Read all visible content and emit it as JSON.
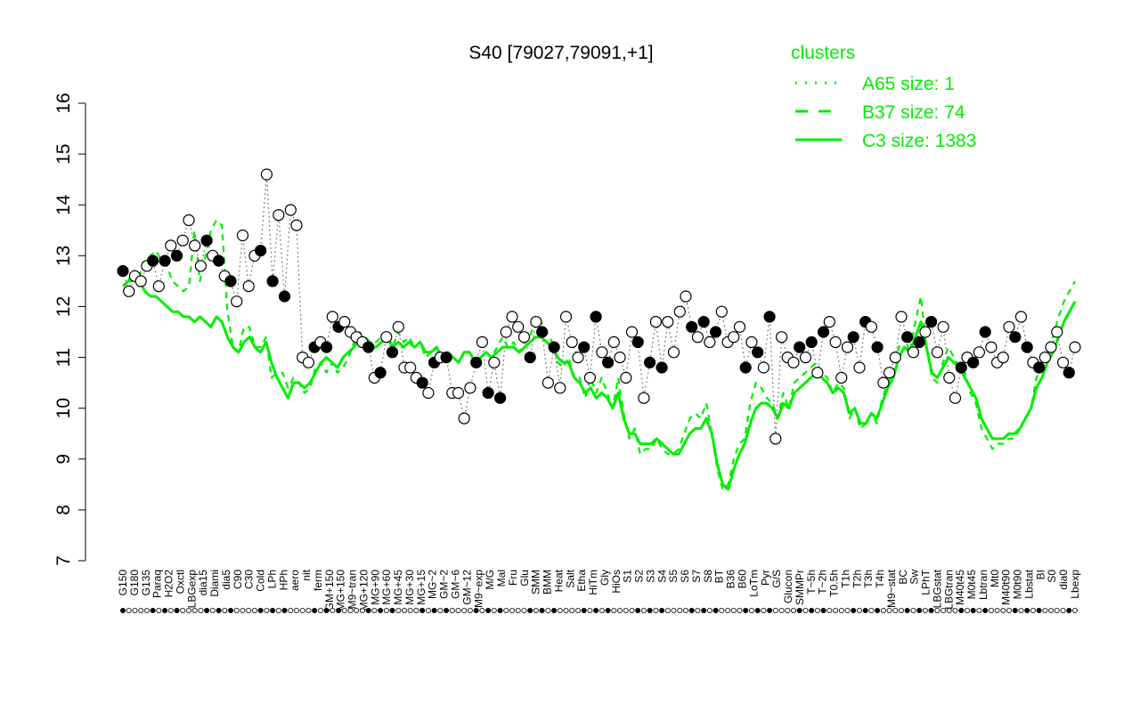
{
  "chart_data": {
    "type": "line",
    "title": "S40 [79027,79091,+1]",
    "xlabel": "",
    "ylabel": "",
    "ylim": [
      7,
      16
    ],
    "yticks": [
      7,
      8,
      9,
      10,
      11,
      12,
      13,
      14,
      15,
      16
    ],
    "x_tick_labels": [
      "G150",
      "G180",
      "G135",
      "Paraq",
      "H2O2",
      "Oxctl",
      "LBGexp",
      "dia15",
      "Diami",
      "dia5",
      "C90",
      "C30",
      "Cold",
      "LPh",
      "HPh",
      "aero",
      "nit",
      "ferm",
      "GM+150",
      "MG+150",
      "M9~tran",
      "MG+120",
      "MG+90",
      "MG+60",
      "MG+45",
      "MG+30",
      "MG+15",
      "MG~2",
      "GM~2",
      "GM~6",
      "GM~12",
      "M9~exp",
      "M/G",
      "Mal",
      "Fru",
      "Glu",
      "SMM",
      "BMM",
      "Heat",
      "Salt",
      "Etha",
      "HiTm",
      "Gly",
      "HiOs",
      "S1",
      "S2",
      "S3",
      "S4",
      "S5",
      "S6",
      "S7",
      "S8",
      "BT",
      "B36",
      "B60",
      "LoTm",
      "Pyr",
      "G/S",
      "Glucon",
      "SMMPr",
      "T~5h",
      "T~2h",
      "T0.5h",
      "T1h",
      "T2h",
      "T3h",
      "T4h",
      "M9~stat",
      "BC",
      "Sw",
      "LPhT",
      "LBGstat",
      "LBGtran",
      "M40t45",
      "M0t45",
      "Lbtran",
      "Mt0",
      "M40t90",
      "M0t90",
      "Lbstat",
      "BI",
      "S0",
      "dia0",
      "Lbexp"
    ],
    "legend": {
      "title": "clusters",
      "position": "top-right",
      "entries": [
        {
          "label": "A65 size: 1",
          "style": "dotted"
        },
        {
          "label": "B37 size: 74",
          "style": "dashed"
        },
        {
          "label": "C3 size: 1383",
          "style": "solid"
        }
      ]
    },
    "series": [
      {
        "style": "dashed",
        "values": [
          12.3,
          12.4,
          12.6,
          12.6,
          12.9,
          13.0,
          13.1,
          12.9,
          12.8,
          12.5,
          12.4,
          12.3,
          12.4,
          13.5,
          12.5,
          13.0,
          13.5,
          13.7,
          13.6,
          11.9,
          11.2,
          11.1,
          11.6,
          11.6,
          11.2,
          11.2,
          11.4,
          10.6,
          10.7,
          10.7,
          10.4,
          10.6,
          10.5,
          10.3,
          10.4,
          10.8,
          10.9,
          10.7,
          10.9,
          10.7,
          10.8,
          11.0,
          11.3,
          11.5,
          11.4,
          11.3,
          11.3,
          11.4,
          11.5,
          11.2,
          11.5,
          11.3,
          11.4,
          11.2,
          11.3,
          11.0,
          11.1,
          11.2,
          11.0,
          11.1,
          11.0,
          10.9,
          11.1,
          11.1,
          10.9,
          11.0,
          11.1,
          11.0,
          11.2,
          11.4,
          11.2,
          11.3,
          11.1,
          11.3,
          11.4,
          11.8,
          11.7,
          11.5,
          11.3,
          10.9,
          10.8,
          11.0,
          10.6,
          10.6,
          10.2,
          10.6,
          10.3,
          10.6,
          10.3,
          10.0,
          10.6,
          9.9,
          9.4,
          9.6,
          9.1,
          9.2,
          9.2,
          9.4,
          9.2,
          9.1,
          9.1,
          9.2,
          9.5,
          9.8,
          9.9,
          9.8,
          10.1,
          9.5,
          8.8,
          8.4,
          8.5,
          9.0,
          9.3,
          9.4,
          10.1,
          10.5,
          10.4,
          10.2,
          10.1,
          9.8,
          10.3,
          10.0,
          10.5,
          10.6,
          10.7,
          10.8,
          10.9,
          10.7,
          10.6,
          10.3,
          10.5,
          10.4,
          9.8,
          10.0,
          9.6,
          9.7,
          9.9,
          9.7,
          10.2,
          10.5,
          10.7,
          11.2,
          11.4,
          11.1,
          11.7,
          12.2,
          11.2,
          10.6,
          10.5,
          10.9,
          11.2,
          11.0,
          10.8,
          10.7,
          10.3,
          10.1,
          9.6,
          9.4,
          9.2,
          9.3,
          9.3,
          9.4,
          9.4,
          9.6,
          9.8,
          10.0,
          10.6,
          10.8,
          11.0,
          11.4,
          11.8,
          12.1,
          12.3,
          12.5
        ]
      },
      {
        "style": "solid",
        "values": [
          12.4,
          12.5,
          12.7,
          12.5,
          12.3,
          12.2,
          12.2,
          12.1,
          12.0,
          11.9,
          11.9,
          11.8,
          11.8,
          11.7,
          11.8,
          11.7,
          11.6,
          11.8,
          11.7,
          11.4,
          11.2,
          11.1,
          11.3,
          11.4,
          11.2,
          11.1,
          11.3,
          10.9,
          10.6,
          10.4,
          10.2,
          10.5,
          10.5,
          10.4,
          10.5,
          10.7,
          10.9,
          11.0,
          10.9,
          10.8,
          11.0,
          11.1,
          11.2,
          11.4,
          11.3,
          11.2,
          11.2,
          11.3,
          11.4,
          11.2,
          11.3,
          11.2,
          11.3,
          11.2,
          11.3,
          11.1,
          11.1,
          11.2,
          11.0,
          11.1,
          11.0,
          10.9,
          11.1,
          11.1,
          10.9,
          11.0,
          11.1,
          11.0,
          11.1,
          11.2,
          11.2,
          11.2,
          11.1,
          11.2,
          11.3,
          11.4,
          11.4,
          11.3,
          11.2,
          11.0,
          10.9,
          10.9,
          10.6,
          10.5,
          10.3,
          10.4,
          10.2,
          10.3,
          10.2,
          10.0,
          10.3,
          9.8,
          9.5,
          9.5,
          9.3,
          9.3,
          9.3,
          9.4,
          9.3,
          9.2,
          9.1,
          9.1,
          9.3,
          9.5,
          9.6,
          9.6,
          9.8,
          9.5,
          8.9,
          8.5,
          8.4,
          8.8,
          9.1,
          9.3,
          9.7,
          10.0,
          10.1,
          10.1,
          10.0,
          9.8,
          10.1,
          10.0,
          10.3,
          10.4,
          10.5,
          10.6,
          10.7,
          10.6,
          10.5,
          10.3,
          10.4,
          10.3,
          9.9,
          10.0,
          9.7,
          9.7,
          9.9,
          9.8,
          10.1,
          10.4,
          10.6,
          11.0,
          11.2,
          11.1,
          11.4,
          11.7,
          11.2,
          10.7,
          10.6,
          10.8,
          11.0,
          10.9,
          10.8,
          10.6,
          10.4,
          10.2,
          9.8,
          9.6,
          9.4,
          9.4,
          9.4,
          9.5,
          9.5,
          9.6,
          9.8,
          10.0,
          10.4,
          10.6,
          10.9,
          11.1,
          11.4,
          11.7,
          11.9,
          12.1
        ]
      },
      {
        "style": "dotted",
        "values": [
          12.7,
          12.3,
          12.6,
          12.5,
          12.8,
          12.9,
          12.4,
          12.9,
          13.2,
          13.0,
          13.3,
          13.7,
          13.2,
          12.8,
          13.3,
          13.0,
          12.9,
          12.6,
          12.5,
          12.1,
          13.4,
          12.4,
          13.0,
          13.1,
          14.6,
          12.5,
          13.8,
          12.2,
          13.9,
          13.6,
          11.0,
          10.9,
          11.2,
          11.3,
          11.2,
          11.8,
          11.6,
          11.7,
          11.5,
          11.4,
          11.3,
          11.2,
          10.6,
          10.7,
          11.4,
          11.1,
          11.6,
          10.8,
          10.8,
          10.6,
          10.5,
          10.3,
          10.9,
          11.0,
          11.0,
          10.3,
          10.3,
          9.8,
          10.4,
          10.9,
          11.3,
          10.3,
          10.9,
          10.2,
          11.5,
          11.8,
          11.6,
          11.4,
          11.0,
          11.7,
          11.5,
          10.5,
          11.2,
          10.4,
          11.8,
          11.3,
          11.0,
          11.2,
          10.6,
          11.8,
          11.1,
          10.9,
          11.3,
          11.0,
          10.6,
          11.5,
          11.3,
          10.2,
          10.9,
          11.7,
          10.8,
          11.7,
          11.1,
          11.9,
          12.2,
          11.6,
          11.4,
          11.7,
          11.3,
          11.5,
          11.9,
          11.3,
          11.4,
          11.6,
          10.8,
          11.3,
          11.1,
          10.8,
          11.8,
          9.4,
          11.4,
          11.0,
          10.9,
          11.2,
          11.0,
          11.3,
          10.7,
          11.5,
          11.7,
          11.3,
          10.6,
          11.2,
          11.4,
          10.8,
          11.7,
          11.6,
          11.2,
          10.5,
          10.7,
          11.0,
          11.8,
          11.4,
          11.1,
          11.3,
          11.5,
          11.7,
          11.1,
          11.6,
          10.6,
          10.2,
          10.8,
          11.0,
          10.9,
          11.1,
          11.5,
          11.2,
          10.9,
          11.0,
          11.6,
          11.4,
          11.8,
          11.2,
          10.9,
          10.8,
          11.0,
          11.2,
          11.5,
          10.9,
          10.7,
          11.2
        ]
      }
    ],
    "markers_note": "points plotted over the lines; values taken from the dotted single-gene series",
    "colors": {
      "cluster_lines": "#00ee00",
      "points_filled": "#000000",
      "points_open": "#ffffff",
      "axis": "#000000",
      "legend_text": "#00ee00"
    }
  }
}
